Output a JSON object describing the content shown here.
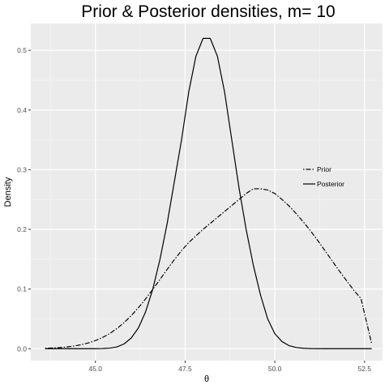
{
  "chart_data": {
    "type": "line",
    "title": "Prior & Posterior densities, m= 10",
    "xlabel": "θ",
    "ylabel": "Density",
    "xlim": [
      43.2,
      53.0
    ],
    "ylim": [
      -0.02,
      0.545
    ],
    "x_ticks": [
      45.0,
      47.5,
      50.0,
      52.5
    ],
    "x_tick_labels": [
      "45.0",
      "47.5",
      "50.0",
      "52.5"
    ],
    "y_ticks": [
      0.0,
      0.1,
      0.2,
      0.3,
      0.4,
      0.5
    ],
    "y_tick_labels": [
      "0.0",
      "0.1",
      "0.2",
      "0.3",
      "0.4",
      "0.5"
    ],
    "grid": true,
    "background": "#ebebeb",
    "legend": {
      "placement": "right-center",
      "entries": [
        {
          "label": "Prior",
          "linetype": "dotdash"
        },
        {
          "label": "Posterior",
          "linetype": "solid"
        }
      ]
    },
    "series": [
      {
        "name": "Prior",
        "linetype": "dotdash",
        "color": "#000000",
        "x": [
          43.6,
          43.8,
          44.0,
          44.2,
          44.4,
          44.6,
          44.8,
          45.0,
          45.2,
          45.4,
          45.6,
          45.8,
          46.0,
          46.2,
          46.4,
          46.6,
          46.8,
          47.0,
          47.2,
          47.4,
          47.6,
          47.8,
          48.0,
          48.2,
          48.4,
          48.6,
          48.8,
          49.0,
          49.2,
          49.4,
          49.6,
          49.8,
          50.0,
          50.2,
          50.4,
          50.6,
          50.8,
          51.0,
          51.2,
          51.4,
          51.6,
          51.8,
          52.0,
          52.2,
          52.4,
          52.7
        ],
        "y": [
          0.0007,
          0.0012,
          0.0019,
          0.0029,
          0.0044,
          0.0066,
          0.0096,
          0.0136,
          0.0188,
          0.0255,
          0.0338,
          0.0438,
          0.0555,
          0.0688,
          0.0836,
          0.0995,
          0.1161,
          0.1329,
          0.1492,
          0.1644,
          0.1779,
          0.189,
          0.2,
          0.21,
          0.22,
          0.23,
          0.24,
          0.25,
          0.26,
          0.268,
          0.268,
          0.266,
          0.26,
          0.25,
          0.239,
          0.226,
          0.212,
          0.197,
          0.181,
          0.164,
          0.147,
          0.13,
          0.114,
          0.098,
          0.084,
          0.008
        ]
      },
      {
        "name": "Posterior",
        "linetype": "solid",
        "color": "#000000",
        "x": [
          43.6,
          44.0,
          44.4,
          44.8,
          45.0,
          45.2,
          45.4,
          45.6,
          45.8,
          46.0,
          46.2,
          46.4,
          46.6,
          46.8,
          47.0,
          47.2,
          47.4,
          47.6,
          47.8,
          48.0,
          48.2,
          48.4,
          48.6,
          48.8,
          49.0,
          49.2,
          49.4,
          49.6,
          49.8,
          50.0,
          50.2,
          50.4,
          50.6,
          50.8,
          51.0,
          51.4,
          51.8,
          52.2,
          52.7
        ],
        "y": [
          0.0,
          0.0,
          0.0,
          0.0,
          0.0,
          0.0003,
          0.001,
          0.003,
          0.008,
          0.018,
          0.035,
          0.062,
          0.1,
          0.15,
          0.21,
          0.28,
          0.35,
          0.43,
          0.49,
          0.52,
          0.52,
          0.49,
          0.43,
          0.35,
          0.27,
          0.2,
          0.14,
          0.09,
          0.05,
          0.025,
          0.012,
          0.005,
          0.002,
          0.0007,
          0.0002,
          0.0,
          0.0,
          0.0,
          0.0
        ]
      }
    ]
  }
}
